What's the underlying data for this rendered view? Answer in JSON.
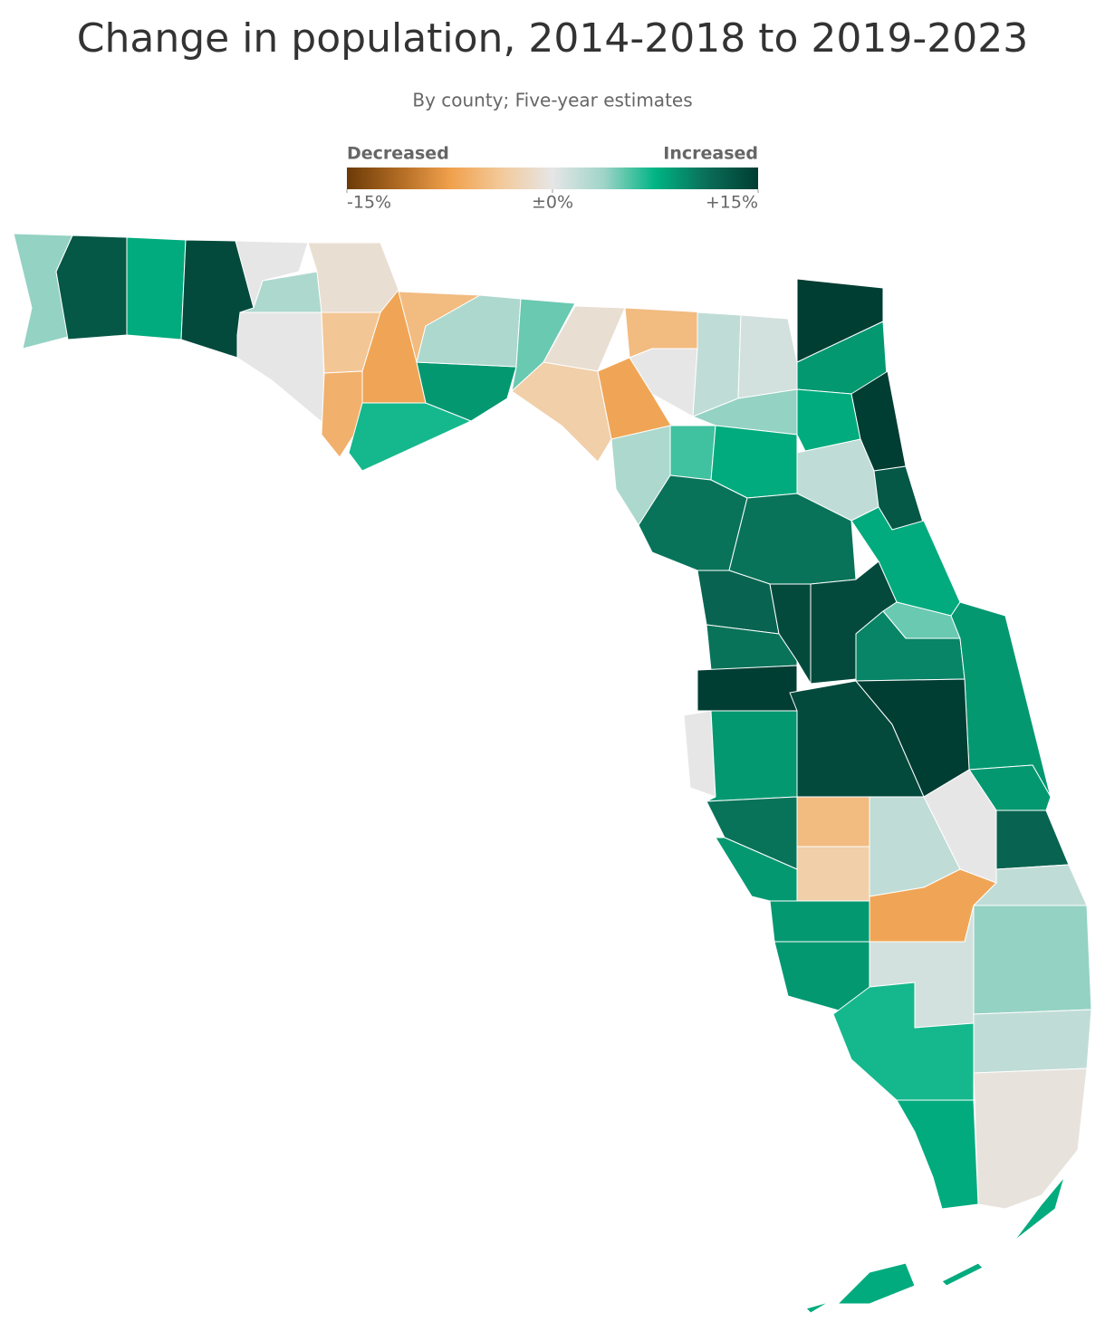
{
  "chart_data": {
    "type": "choropleth",
    "title": "Change in population, 2014-2018 to 2019-2023",
    "subtitle": "By county; Five-year estimates",
    "legend": {
      "low_label": "Decreased",
      "high_label": "Increased",
      "range": [
        -15,
        15
      ],
      "ticks": [
        {
          "value": -15,
          "label": "-15%"
        },
        {
          "value": 0,
          "label": "±0%"
        },
        {
          "value": 15,
          "label": "+15%"
        }
      ],
      "colors": [
        "#6b3a07",
        "#b06a23",
        "#f0a04b",
        "#f3c99a",
        "#e6e6e6",
        "#9fd4c8",
        "#00b483",
        "#0a6e57",
        "#003d33"
      ]
    },
    "values": [
      4,
      13,
      8,
      14,
      0,
      3,
      0,
      -1,
      -4,
      -6,
      -7,
      -5,
      7,
      9,
      3,
      5,
      -1,
      -3,
      -5,
      0,
      -7,
      2,
      1,
      15,
      9,
      8,
      15,
      2,
      4,
      6,
      8,
      3,
      11,
      11,
      13,
      8,
      14,
      12,
      14,
      11,
      15,
      5,
      10,
      9,
      0,
      9,
      14,
      15,
      9,
      11,
      9,
      -5,
      2,
      0,
      12,
      -3,
      -7,
      9,
      2,
      9,
      1,
      4,
      7,
      2,
      -0.5,
      8
    ]
  }
}
